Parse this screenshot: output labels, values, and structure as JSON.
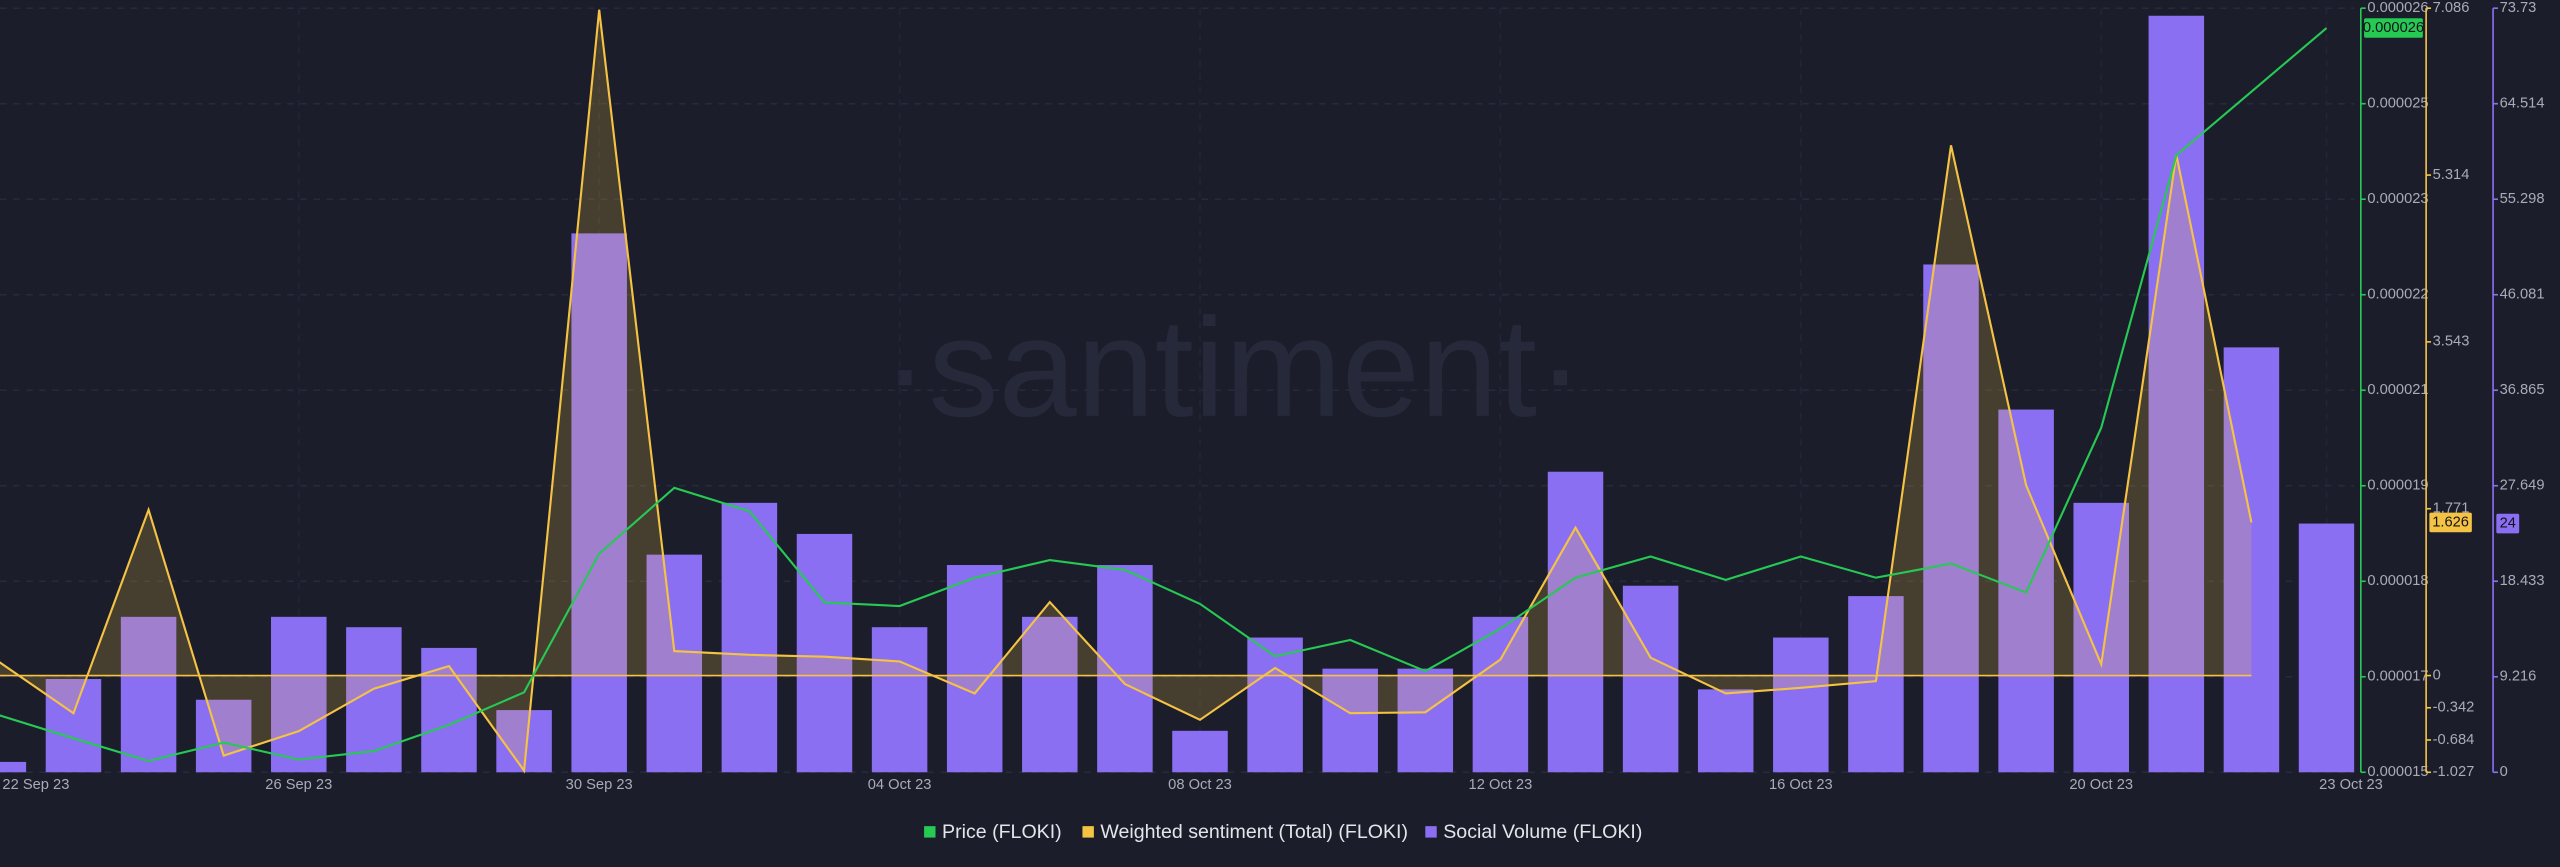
{
  "chart_data": {
    "type": "combo",
    "watermark": "·santiment·",
    "categories": [
      "22 Sep 23",
      null,
      null,
      null,
      "26 Sep 23",
      null,
      null,
      null,
      "30 Sep 23",
      null,
      null,
      null,
      "04 Oct 23",
      null,
      null,
      null,
      "08 Oct 23",
      null,
      null,
      null,
      "12 Oct 23",
      null,
      null,
      null,
      "16 Oct 23",
      null,
      null,
      null,
      "20 Oct 23",
      null,
      null,
      "23 Oct 23"
    ],
    "ylim": [
      1.52e-05,
      2.6e-05
    ],
    "yticks": [
      {
        "value": 1.52e-05,
        "label": "0.000015"
      },
      {
        "value": 1.655e-05,
        "label": "0.000017"
      },
      {
        "value": 1.79e-05,
        "label": "0.000018"
      },
      {
        "value": 1.925e-05,
        "label": "0.000019"
      },
      {
        "value": 2.06e-05,
        "label": "0.000021"
      },
      {
        "value": 2.195e-05,
        "label": "0.000022"
      },
      {
        "value": 2.33e-05,
        "label": "0.000023"
      },
      {
        "value": 2.465e-05,
        "label": "0.000025"
      },
      {
        "value": 2.6e-05,
        "label": "0.000026"
      }
    ],
    "y2lim": [
      -1.027,
      7.086
    ],
    "y2ticks": [
      -1.027,
      -0.684,
      -0.342,
      0,
      1.771,
      3.543,
      5.314,
      7.086
    ],
    "y3lim": [
      0,
      73.73
    ],
    "y3ticks": [
      0,
      9.216,
      18.433,
      27.649,
      36.865,
      46.081,
      55.298,
      64.514,
      73.73
    ],
    "grid": true,
    "series": [
      {
        "name": "Price (FLOKI)",
        "type": "line",
        "axis": "y",
        "color": "#26c953",
        "values": [
          1.601e-05,
          1.568e-05,
          1.536e-05,
          1.562e-05,
          1.538e-05,
          1.55e-05,
          1.587e-05,
          1.633e-05,
          1.829e-05,
          1.922e-05,
          1.889e-05,
          1.76e-05,
          1.755e-05,
          1.795e-05,
          1.82e-05,
          1.806e-05,
          1.758e-05,
          1.684e-05,
          1.707e-05,
          1.663e-05,
          1.723e-05,
          1.795e-05,
          1.825e-05,
          1.792e-05,
          1.825e-05,
          1.795e-05,
          1.815e-05,
          1.774e-05,
          2.007e-05,
          2.392e-05,
          2.482e-05,
          2.572e-05
        ],
        "value_labels": [
          null,
          null,
          null,
          null,
          null,
          null,
          null,
          null,
          null,
          null,
          null,
          null,
          null,
          null,
          null,
          null,
          null,
          null,
          null,
          null,
          null,
          null,
          null,
          null,
          null,
          null,
          null,
          null,
          null,
          null,
          null,
          "0.000026"
        ]
      },
      {
        "name": "Weighted sentiment (Total) (FLOKI)",
        "type": "area",
        "axis": "y2",
        "color": "#f5c343",
        "values": [
          0.15,
          -0.4,
          1.76,
          -0.85,
          -0.59,
          -0.14,
          0.1,
          -1.01,
          7.07,
          0.26,
          0.22,
          0.2,
          0.15,
          -0.19,
          0.78,
          -0.09,
          -0.47,
          0.08,
          -0.4,
          -0.39,
          0.17,
          1.57,
          0.19,
          -0.19,
          -0.13,
          -0.06,
          5.63,
          2.02,
          0.12,
          5.53,
          1.626,
          null
        ],
        "value_labels": [
          null,
          null,
          null,
          null,
          null,
          null,
          null,
          null,
          null,
          null,
          null,
          null,
          null,
          null,
          null,
          null,
          null,
          null,
          null,
          null,
          null,
          null,
          null,
          null,
          null,
          null,
          null,
          null,
          null,
          null,
          "1.626",
          null
        ]
      },
      {
        "name": "Social Volume (FLOKI)",
        "type": "bar",
        "axis": "y3",
        "color": "#8b6ff3",
        "values": [
          1,
          9,
          15,
          7,
          15,
          14,
          12,
          6,
          52,
          21,
          26,
          23,
          14,
          20,
          15,
          20,
          4,
          13,
          10,
          10,
          15,
          29,
          18,
          8,
          13,
          17,
          49,
          35,
          26,
          73,
          41,
          24
        ],
        "value_labels": [
          null,
          null,
          null,
          null,
          null,
          null,
          null,
          null,
          null,
          null,
          null,
          null,
          null,
          null,
          null,
          null,
          null,
          null,
          null,
          null,
          null,
          null,
          null,
          null,
          null,
          null,
          null,
          null,
          null,
          null,
          null,
          "24"
        ]
      }
    ]
  }
}
